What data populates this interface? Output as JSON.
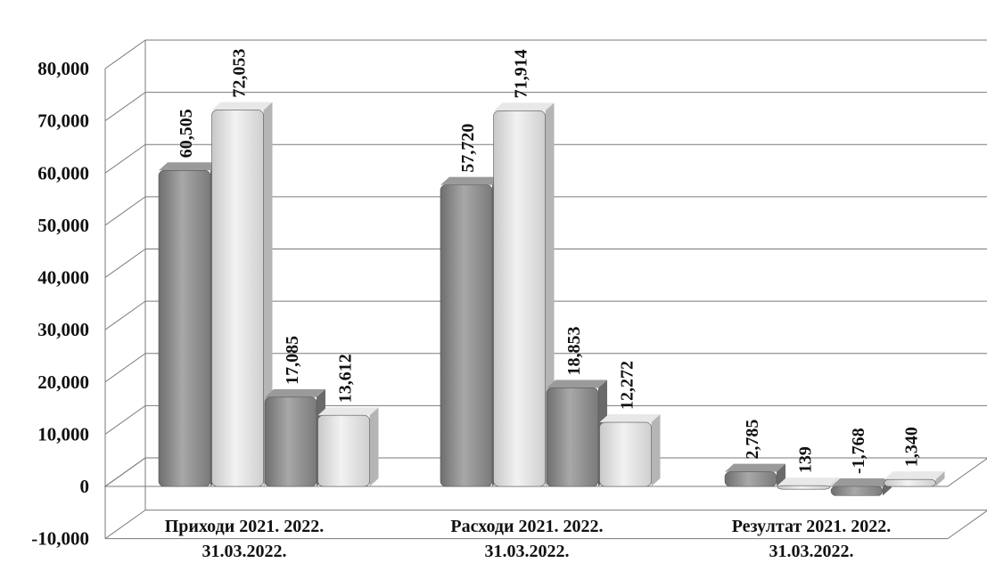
{
  "chart_data": {
    "type": "bar",
    "categories": [
      [
        "Приходи 2021. 2022.",
        "31.03.2022."
      ],
      [
        "Расходи 2021. 2022.",
        "31.03.2022."
      ],
      [
        "Резултат 2021. 2022.",
        "31.03.2022."
      ]
    ],
    "series_values": [
      [
        60505,
        72053,
        17085,
        13612
      ],
      [
        57720,
        71914,
        18853,
        12272
      ],
      [
        2785,
        139,
        -1768,
        1340
      ]
    ],
    "value_labels": [
      [
        "60,505",
        "72,053",
        "17,085",
        "13,612"
      ],
      [
        "57,720",
        "71,914",
        "18,853",
        "12,272"
      ],
      [
        "2,785",
        "139",
        "-1,768",
        "1,340"
      ]
    ],
    "yticks": [
      "80,000",
      "70,000",
      "60,000",
      "50,000",
      "40,000",
      "30,000",
      "20,000",
      "10,000",
      "0",
      "-10,000"
    ],
    "ylim": [
      -10000,
      80000
    ],
    "grid": true,
    "colors": {
      "dark": "#8f8f8f",
      "light": "#dcdcdc",
      "grid": "#7a7a7a"
    }
  }
}
